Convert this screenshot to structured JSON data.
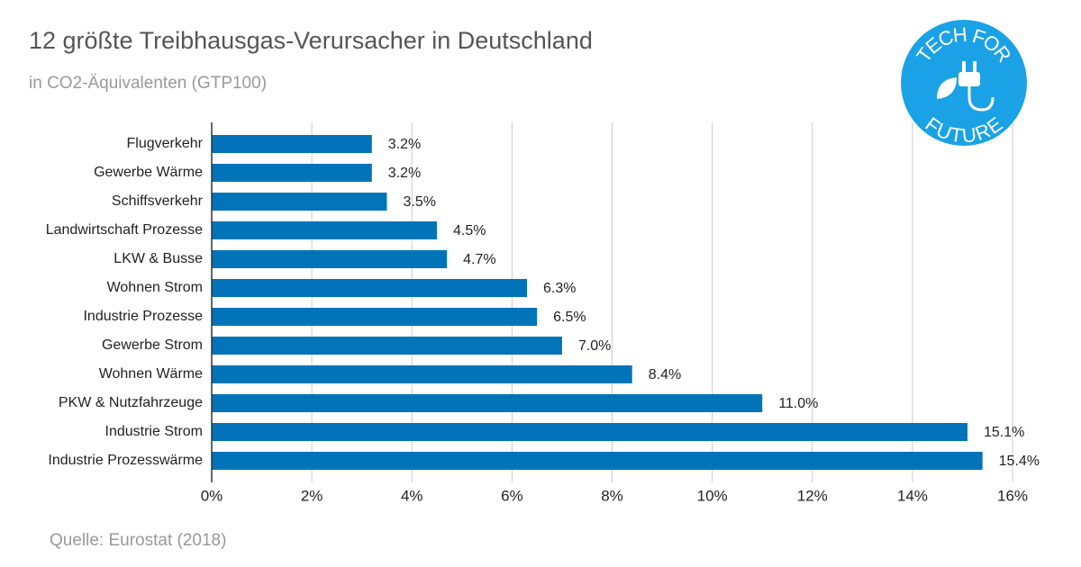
{
  "chart_data": {
    "type": "hbar",
    "title": "12 größte Treibhausgas-Verursacher in Deutschland",
    "subtitle": "in CO2-Äquivalenten (GTP100)",
    "source": "Quelle: Eurostat (2018)",
    "logo": [
      "TECH FOR",
      "FUTURE"
    ],
    "categories": [
      "Flugverkehr",
      "Gewerbe Wärme",
      "Schiffsverkehr",
      "Landwirtschaft Prozesse",
      "LKW & Busse",
      "Wohnen Strom",
      "Industrie Prozesse",
      "Gewerbe Strom",
      "Wohnen Wärme",
      "PKW & Nutzfahrzeuge",
      "Industrie Strom",
      "Industrie Prozesswärme"
    ],
    "values": [
      3.2,
      3.2,
      3.5,
      4.5,
      4.7,
      6.3,
      6.5,
      7.0,
      8.4,
      11.0,
      15.1,
      15.4
    ],
    "value_labels": [
      "3.2%",
      "3.2%",
      "3.5%",
      "4.5%",
      "4.7%",
      "6.3%",
      "6.5%",
      "7.0%",
      "8.4%",
      "11.0%",
      "15.1%",
      "15.4%"
    ],
    "color": "#0073b9",
    "xlim": [
      0,
      16
    ],
    "xticks": [
      {
        "value": 0,
        "label": "0%"
      },
      {
        "value": 2,
        "label": "2%"
      },
      {
        "value": 4,
        "label": "4%"
      },
      {
        "value": 6,
        "label": "6%"
      },
      {
        "value": 8,
        "label": "8%"
      },
      {
        "value": 10,
        "label": "10%"
      },
      {
        "value": 12,
        "label": "12%"
      },
      {
        "value": 14,
        "label": "14%"
      },
      {
        "value": 16,
        "label": "16%"
      }
    ],
    "grid": true
  }
}
